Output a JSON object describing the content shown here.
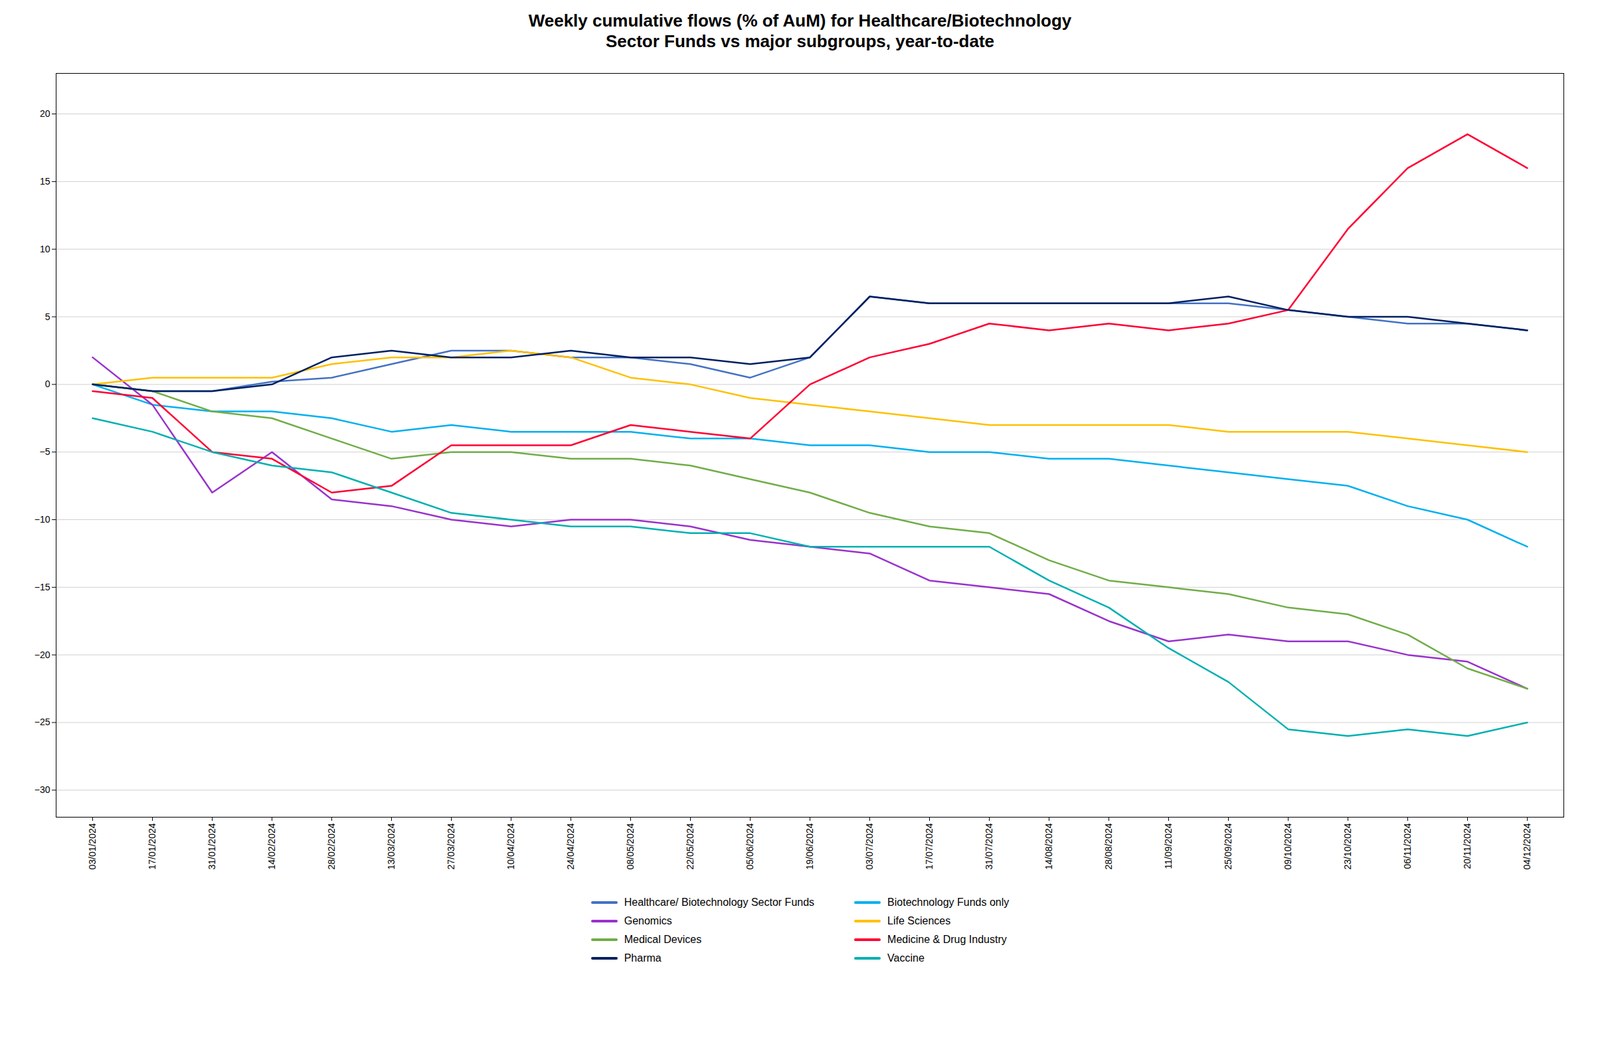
{
  "chart_data": {
    "type": "line",
    "title": "Weekly cumulative flows (% of AuM) for Healthcare/Biotechnology\nSector Funds vs major subgroups, year-to-date",
    "categories": [
      "03/01/2024",
      "17/01/2024",
      "31/01/2024",
      "14/02/2024",
      "28/02/2024",
      "13/03/2024",
      "27/03/2024",
      "10/04/2024",
      "24/04/2024",
      "08/05/2024",
      "22/05/2024",
      "05/06/2024",
      "19/06/2024",
      "03/07/2024",
      "17/07/2024",
      "31/07/2024",
      "14/08/2024",
      "28/08/2024",
      "11/09/2024",
      "25/09/2024",
      "09/10/2024",
      "23/10/2024",
      "06/11/2024",
      "20/11/2024",
      "04/12/2024"
    ],
    "series": [
      {
        "name": "Healthcare/ Biotechnology Sector Funds",
        "color": "#4472c4",
        "values": [
          0,
          -0.5,
          -0.5,
          0.2,
          0.5,
          1.5,
          2.5,
          2.5,
          2.0,
          2.0,
          1.5,
          0.5,
          2.0,
          6.5,
          6.0,
          6.0,
          6.0,
          6.0,
          6.0,
          6.0,
          5.5,
          5.0,
          4.5,
          4.5,
          4.0
        ]
      },
      {
        "name": "Biotechnology Funds only",
        "color": "#00b0f0",
        "values": [
          0,
          -1.5,
          -2.0,
          -2.0,
          -2.5,
          -3.5,
          -3.0,
          -3.5,
          -3.5,
          -3.5,
          -4.0,
          -4.0,
          -4.5,
          -4.5,
          -5.0,
          -5.0,
          -5.5,
          -5.5,
          -6.0,
          -6.5,
          -7.0,
          -7.5,
          -9.0,
          -10.0,
          -12.0
        ]
      },
      {
        "name": "Genomics",
        "color": "#9932cc",
        "values": [
          2.0,
          -1.5,
          -8.0,
          -5.0,
          -8.5,
          -9.0,
          -10.0,
          -10.5,
          -10.0,
          -10.0,
          -10.5,
          -11.5,
          -12.0,
          -12.5,
          -14.5,
          -15.0,
          -15.5,
          -17.5,
          -19.0,
          -18.5,
          -19.0,
          -19.0,
          -20.0,
          -20.5,
          -22.5
        ]
      },
      {
        "name": "Life Sciences",
        "color": "#ffc000",
        "values": [
          0,
          0.5,
          0.5,
          0.5,
          1.5,
          2.0,
          2.0,
          2.5,
          2.0,
          0.5,
          0.0,
          -1.0,
          -1.5,
          -2.0,
          -2.5,
          -3.0,
          -3.0,
          -3.0,
          -3.0,
          -3.5,
          -3.5,
          -3.5,
          -4.0,
          -4.5,
          -5.0
        ]
      },
      {
        "name": "Medical Devices",
        "color": "#70ad47",
        "values": [
          0,
          -0.5,
          -2.0,
          -2.5,
          -4.0,
          -5.5,
          -5.0,
          -5.0,
          -5.5,
          -5.5,
          -6.0,
          -7.0,
          -8.0,
          -9.5,
          -10.5,
          -11.0,
          -13.0,
          -14.5,
          -15.0,
          -15.5,
          -16.5,
          -17.0,
          -18.5,
          -21.0,
          -22.5
        ]
      },
      {
        "name": "Medicine & Drug Industry",
        "color": "#ff0033",
        "values": [
          -0.5,
          -1.0,
          -5.0,
          -5.5,
          -8.0,
          -7.5,
          -4.5,
          -4.5,
          -4.5,
          -3.0,
          -3.5,
          -4.0,
          0.0,
          2.0,
          3.0,
          4.5,
          4.0,
          4.5,
          4.0,
          4.5,
          5.5,
          11.5,
          16.0,
          18.5,
          16.0
        ]
      },
      {
        "name": "Pharma",
        "color": "#002060",
        "values": [
          0,
          -0.5,
          -0.5,
          0.0,
          2.0,
          2.5,
          2.0,
          2.0,
          2.5,
          2.0,
          2.0,
          1.5,
          2.0,
          6.5,
          6.0,
          6.0,
          6.0,
          6.0,
          6.0,
          6.5,
          5.5,
          5.0,
          5.0,
          4.5,
          4.0
        ]
      },
      {
        "name": "Vaccine",
        "color": "#00b0b0",
        "values": [
          -2.5,
          -3.5,
          -5.0,
          -6.0,
          -6.5,
          -8.0,
          -9.5,
          -10.0,
          -10.5,
          -10.5,
          -11.0,
          -11.0,
          -12.0,
          -12.0,
          -12.0,
          -12.0,
          -14.5,
          -16.5,
          -19.5,
          -22.0,
          -25.5,
          -26.0,
          -25.5,
          -26.0,
          -25.0
        ]
      }
    ],
    "ylim": [
      -32,
      23
    ],
    "yticks": [
      -30,
      -25,
      -20,
      -15,
      -10,
      -5,
      0,
      5,
      10,
      15,
      20
    ],
    "grid": true,
    "legend": "bottom"
  }
}
